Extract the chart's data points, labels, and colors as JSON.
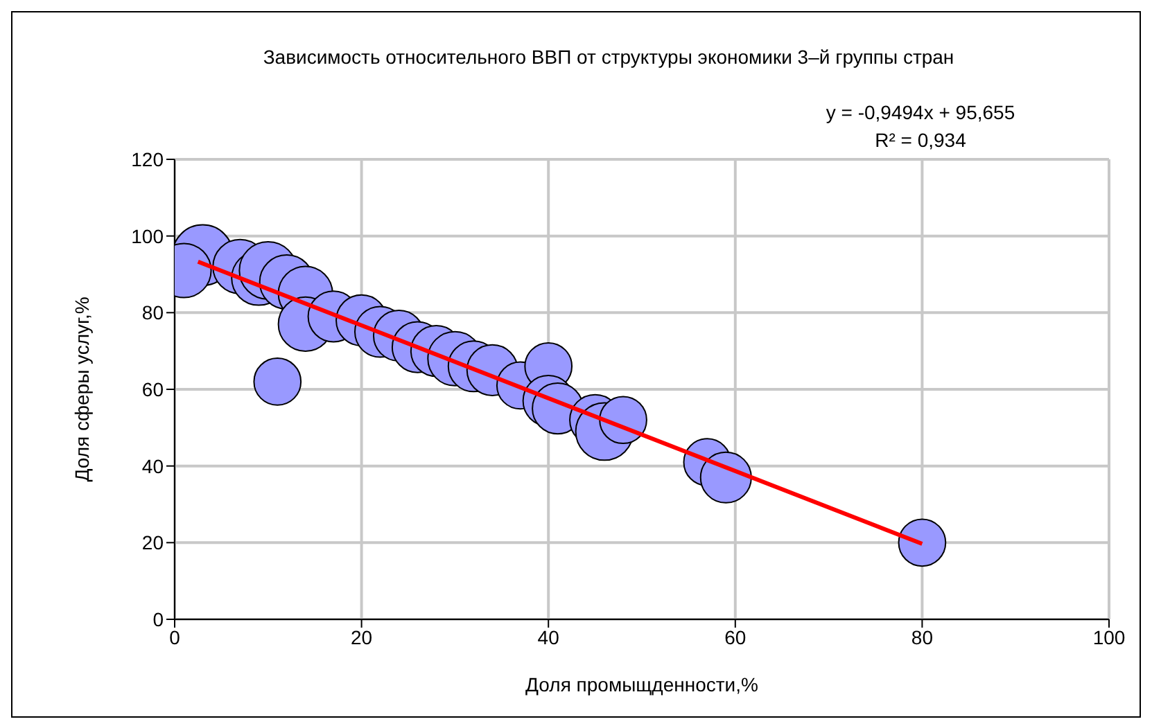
{
  "chart_data": {
    "type": "bubble",
    "title": "Зависимость относительного ВВП от структуры экономики 3–й группы стран",
    "xlabel": "Доля промыщденности,%",
    "ylabel": "Доля сферы услуг,%",
    "annotations": [
      "y = -0,9494x + 95,655",
      "R² = 0,934"
    ],
    "xlim": [
      0,
      100
    ],
    "xticks": [
      0,
      20,
      40,
      60,
      80,
      100
    ],
    "ylim": [
      0,
      120
    ],
    "yticks": [
      0,
      20,
      40,
      60,
      80,
      100,
      120
    ],
    "grid": true,
    "series": [
      {
        "color": "#9999ff",
        "x": [
          3,
          1,
          7,
          9,
          10,
          12,
          14,
          14,
          11,
          17,
          20,
          22,
          24,
          26,
          28,
          30,
          32,
          34,
          37,
          40,
          40,
          41,
          45,
          46,
          48,
          57,
          59,
          80
        ],
        "values": [
          95,
          91,
          92,
          89,
          91,
          88,
          85,
          77,
          62,
          79,
          78,
          75,
          74,
          71,
          70,
          68,
          66,
          65,
          61,
          66,
          57,
          55,
          52,
          49,
          52,
          41,
          37,
          20
        ],
        "sizes": [
          1,
          0.8,
          0.8,
          0.8,
          0.9,
          0.8,
          0.8,
          0.8,
          0.6,
          0.7,
          0.7,
          0.7,
          0.7,
          0.7,
          0.7,
          0.8,
          0.7,
          0.7,
          0.6,
          0.6,
          0.7,
          0.7,
          0.7,
          0.9,
          0.6,
          0.6,
          0.7,
          0.6
        ]
      },
      {
        "type": "line",
        "color": "#ff0000",
        "x": [
          2.5,
          80
        ],
        "values": [
          93.3,
          19.7
        ]
      }
    ]
  }
}
